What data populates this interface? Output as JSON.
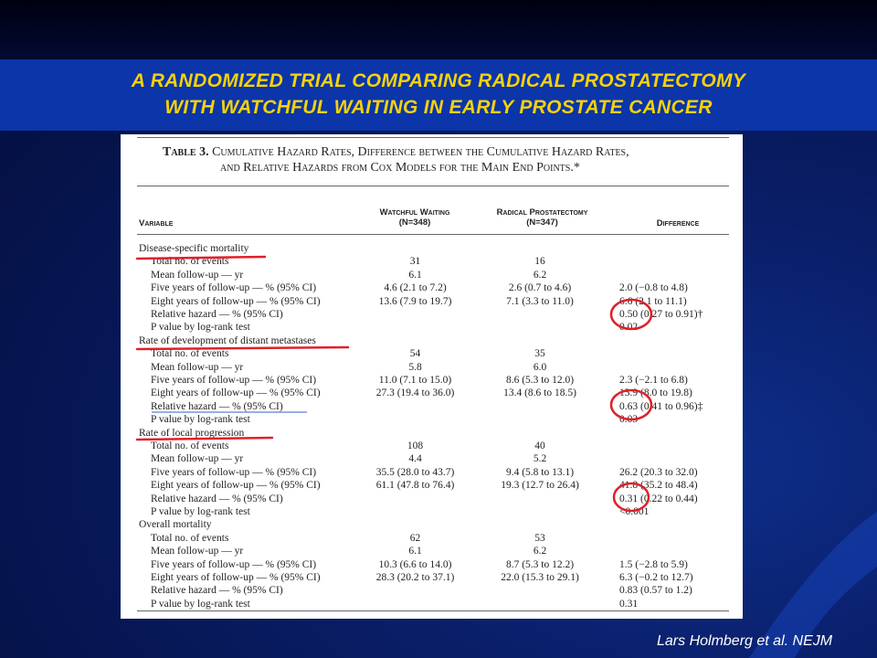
{
  "slide": {
    "title_line1": "A RANDOMIZED TRIAL COMPARING RADICAL PROSTATECTOMY",
    "title_line2": "WITH WATCHFUL WAITING IN EARLY PROSTATE CANCER",
    "citation": "Lars Holmberg et al.  NEJM",
    "colors": {
      "title": "#f5d20a",
      "background": "#0a1f6a",
      "band": "#0b35a8",
      "annotation": "#e0202a"
    }
  },
  "table": {
    "caption_bold": "Table 3.",
    "caption_line1": "Cumulative Hazard Rates, Difference between the Cumulative Hazard Rates,",
    "caption_line2": "and Relative Hazards from Cox Models for the Main End Points.*",
    "headers": {
      "variable": "Variable",
      "watchful_line1": "Watchful Waiting",
      "watchful_line2": "(N=348)",
      "radical_line1": "Radical Prostatectomy",
      "radical_line2": "(N=347)",
      "difference": "Difference"
    },
    "rows": [
      {
        "label": "Disease-specific mortality",
        "type": "section",
        "ww": "",
        "rp": "",
        "diff": ""
      },
      {
        "label": "Total no. of events",
        "type": "sub",
        "ww": "31",
        "rp": "16",
        "diff": ""
      },
      {
        "label": "Mean follow-up — yr",
        "type": "sub",
        "ww": "6.1",
        "rp": "6.2",
        "diff": ""
      },
      {
        "label": "Five years of follow-up — % (95% CI)",
        "type": "sub",
        "ww": "4.6 (2.1 to 7.2)",
        "rp": "2.6 (0.7 to 4.6)",
        "diff": "2.0 (−0.8 to 4.8)"
      },
      {
        "label": "Eight years of follow-up — % (95% CI)",
        "type": "sub",
        "ww": "13.6 (7.9 to 19.7)",
        "rp": "7.1 (3.3 to 11.0)",
        "diff": "6.6 (2.1 to 11.1)"
      },
      {
        "label": "Relative hazard — % (95% CI)",
        "type": "sub",
        "ww": "",
        "rp": "",
        "diff": "0.50 (0.27 to 0.91)†"
      },
      {
        "label": "P value by log-rank test",
        "type": "sub",
        "ww": "",
        "rp": "",
        "diff": "0.02"
      },
      {
        "label": "Rate of development of distant metastases",
        "type": "section",
        "ww": "",
        "rp": "",
        "diff": ""
      },
      {
        "label": "Total no. of events",
        "type": "sub",
        "ww": "54",
        "rp": "35",
        "diff": ""
      },
      {
        "label": "Mean follow-up — yr",
        "type": "sub",
        "ww": "5.8",
        "rp": "6.0",
        "diff": ""
      },
      {
        "label": "Five years of follow-up — % (95% CI)",
        "type": "sub",
        "ww": "11.0 (7.1 to 15.0)",
        "rp": "8.6 (5.3 to 12.0)",
        "diff": "2.3 (−2.1 to 6.8)"
      },
      {
        "label": "Eight years of follow-up — % (95% CI)",
        "type": "sub",
        "ww": "27.3 (19.4 to 36.0)",
        "rp": "13.4 (8.6 to 18.5)",
        "diff": "13.9 (8.0 to 19.8)"
      },
      {
        "label": "Relative hazard — % (95% CI)",
        "type": "sub",
        "ww": "",
        "rp": "",
        "diff": "0.63 (0.41 to 0.96)‡"
      },
      {
        "label": "P value by log-rank test",
        "type": "sub",
        "ww": "",
        "rp": "",
        "diff": "0.03"
      },
      {
        "label": "Rate of local progression",
        "type": "section",
        "ww": "",
        "rp": "",
        "diff": ""
      },
      {
        "label": "Total no. of events",
        "type": "sub",
        "ww": "108",
        "rp": "40",
        "diff": ""
      },
      {
        "label": "Mean follow-up — yr",
        "type": "sub",
        "ww": "4.4",
        "rp": "5.2",
        "diff": ""
      },
      {
        "label": "Five years of follow-up — % (95% CI)",
        "type": "sub",
        "ww": "35.5 (28.0 to 43.7)",
        "rp": "9.4 (5.8 to 13.1)",
        "diff": "26.2 (20.3 to 32.0)"
      },
      {
        "label": "Eight years of follow-up — % (95% CI)",
        "type": "sub",
        "ww": "61.1 (47.8 to 76.4)",
        "rp": "19.3 (12.7 to 26.4)",
        "diff": "41.8 (35.2 to 48.4)"
      },
      {
        "label": "Relative hazard — % (95% CI)",
        "type": "sub",
        "ww": "",
        "rp": "",
        "diff": "0.31 (0.22 to 0.44)"
      },
      {
        "label": "P value by log-rank test",
        "type": "sub",
        "ww": "",
        "rp": "",
        "diff": "<0.001"
      },
      {
        "label": "Overall mortality",
        "type": "section",
        "ww": "",
        "rp": "",
        "diff": ""
      },
      {
        "label": "Total no. of events",
        "type": "sub",
        "ww": "62",
        "rp": "53",
        "diff": ""
      },
      {
        "label": "Mean follow-up — yr",
        "type": "sub",
        "ww": "6.1",
        "rp": "6.2",
        "diff": ""
      },
      {
        "label": "Five years of follow-up — % (95% CI)",
        "type": "sub",
        "ww": "10.3 (6.6 to 14.0)",
        "rp": "8.7 (5.3 to 12.2)",
        "diff": "1.5 (−2.8 to 5.9)"
      },
      {
        "label": "Eight years of follow-up — % (95% CI)",
        "type": "sub",
        "ww": "28.3 (20.2 to 37.1)",
        "rp": "22.0 (15.3 to 29.1)",
        "diff": "6.3 (−0.2 to 12.7)"
      },
      {
        "label": "Relative hazard — % (95% CI)",
        "type": "sub",
        "ww": "",
        "rp": "",
        "diff": "0.83 (0.57 to 1.2)"
      },
      {
        "label": "P value by log-rank test",
        "type": "sub",
        "ww": "",
        "rp": "",
        "diff": "0.31"
      }
    ]
  }
}
